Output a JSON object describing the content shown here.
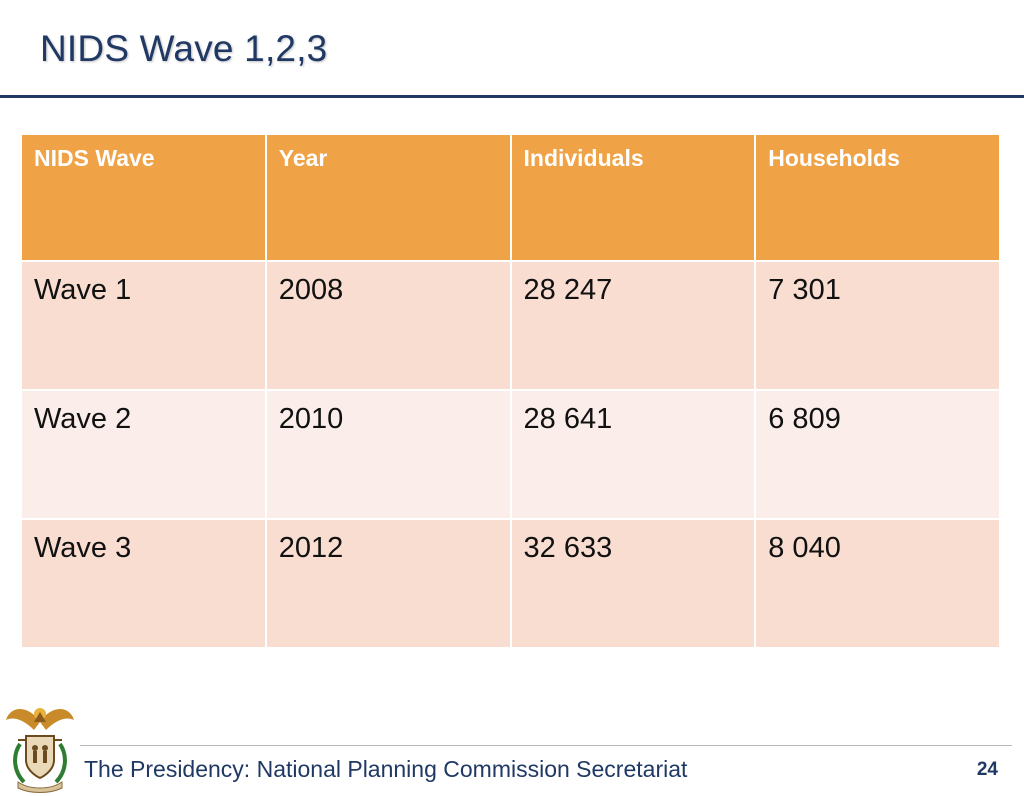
{
  "slide": {
    "title": "NIDS Wave 1,2,3",
    "colors": {
      "title": "#1f3864",
      "header_fill": "#f0a346",
      "row_fill_dark": "#f8ddd0",
      "row_fill_light": "#fbeeea"
    }
  },
  "table": {
    "headers": [
      "NIDS Wave",
      "Year",
      "Individuals",
      "Households"
    ],
    "rows": [
      [
        "Wave 1",
        "2008",
        "28 247",
        "7 301"
      ],
      [
        "Wave 2",
        "2010",
        "28 641",
        "6 809"
      ],
      [
        "Wave 3",
        "2012",
        "32 633",
        "8 040"
      ]
    ]
  },
  "footer": {
    "organization": "The Presidency: National Planning Commission Secretariat",
    "page_number": "24",
    "logo_icon": "coat-of-arms-icon"
  }
}
